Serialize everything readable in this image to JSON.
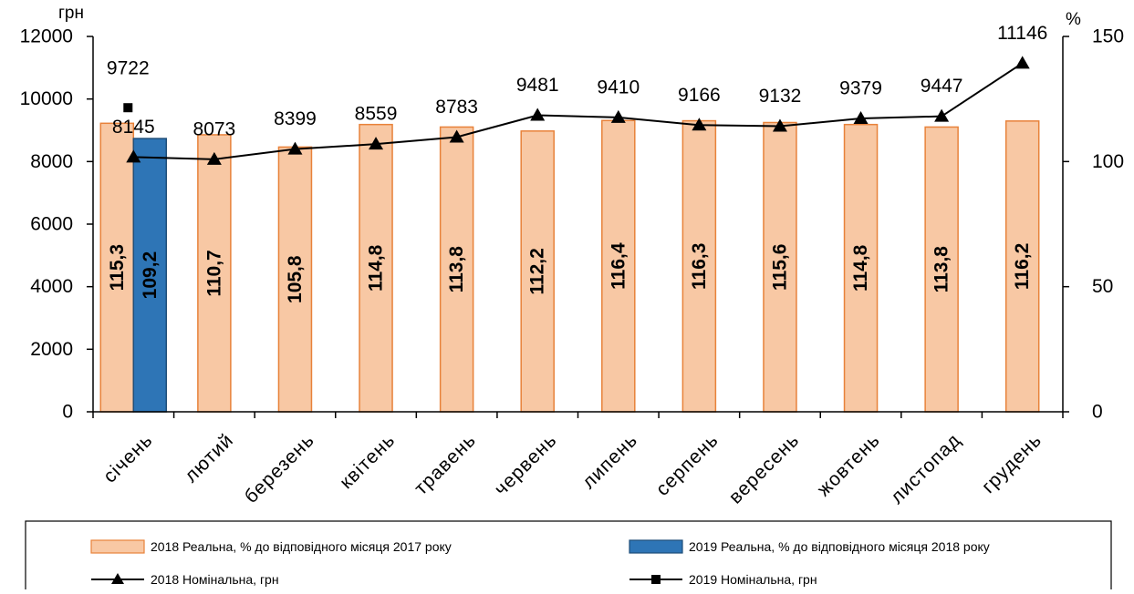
{
  "chart_data": {
    "type": "bar",
    "categories": [
      "січень",
      "лютий",
      "березень",
      "квітень",
      "травень",
      "червень",
      "липень",
      "серпень",
      "вересень",
      "жовтень",
      "листопад",
      "грудень"
    ],
    "y_left_label": "грн",
    "y_right_label": "%",
    "y_left_ticks": [
      "0",
      "2000",
      "4000",
      "6000",
      "8000",
      "10000",
      "12000"
    ],
    "y_right_ticks": [
      "0",
      "50",
      "100",
      "150"
    ],
    "ylim_left": [
      0,
      12000
    ],
    "ylim_right": [
      0,
      150
    ],
    "series": [
      {
        "name": "2018 Реальна, % до відповідного місяця 2017 року",
        "type": "bar",
        "axis": "right",
        "color": "#F8C8A4",
        "edge": "#E8823A",
        "values": [
          115.3,
          110.7,
          105.8,
          114.8,
          113.8,
          112.2,
          116.4,
          116.3,
          115.6,
          114.8,
          113.8,
          116.2
        ],
        "labels": [
          "115,3",
          "110,7",
          "105,8",
          "114,8",
          "113,8",
          "112,2",
          "116,4",
          "116,3",
          "115,6",
          "114,8",
          "113,8",
          "116,2"
        ]
      },
      {
        "name": "2019 Реальна, % до відповідного місяця 2018 року",
        "type": "bar",
        "axis": "right",
        "color": "#2E75B6",
        "edge": "#1F4E79",
        "values": [
          109.2,
          null,
          null,
          null,
          null,
          null,
          null,
          null,
          null,
          null,
          null,
          null
        ],
        "labels": [
          "109,2",
          "",
          "",
          "",
          "",
          "",
          "",
          "",
          "",
          "",
          "",
          ""
        ]
      },
      {
        "name": "2018 Номінальна, грн",
        "type": "line",
        "axis": "left",
        "marker": "triangle",
        "color": "#000000",
        "values": [
          8145,
          8073,
          8399,
          8559,
          8783,
          9481,
          9410,
          9166,
          9132,
          9379,
          9447,
          11146
        ],
        "labels": [
          "8145",
          "8073",
          "8399",
          "8559",
          "8783",
          "9481",
          "9410",
          "9166",
          "9132",
          "9379",
          "9447",
          "11146"
        ]
      },
      {
        "name": "2019 Номінальна, грн",
        "type": "line",
        "axis": "left",
        "marker": "square",
        "color": "#000000",
        "values": [
          9722,
          null,
          null,
          null,
          null,
          null,
          null,
          null,
          null,
          null,
          null,
          null
        ],
        "labels": [
          "9722",
          "",
          "",
          "",
          "",
          "",
          "",
          "",
          "",
          "",
          "",
          ""
        ]
      }
    ],
    "legend_position": "bottom"
  }
}
